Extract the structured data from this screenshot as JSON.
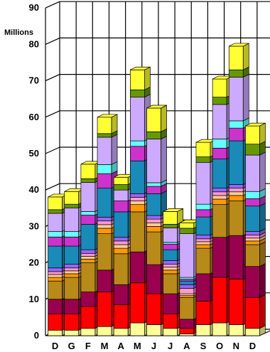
{
  "chart_data": {
    "type": "bar",
    "stacked": true,
    "three_d": true,
    "title": "",
    "ylabel": "Millions",
    "xlabel": "",
    "ylim": [
      0,
      90
    ],
    "yticks": [
      0,
      10,
      20,
      30,
      40,
      50,
      60,
      70,
      80,
      90
    ],
    "grid": true,
    "categories": [
      "D",
      "G",
      "F",
      "M",
      "A",
      "M",
      "J",
      "J",
      "A",
      "S",
      "O",
      "N",
      "D"
    ],
    "series": [
      {
        "color": "#ffff99",
        "values": [
          1.5,
          1.5,
          2.0,
          2.5,
          2.0,
          3.5,
          3.0,
          2.0,
          0.5,
          3.0,
          3.5,
          3.0,
          2.0
        ]
      },
      {
        "color": "#ff0000",
        "values": [
          4.5,
          4.5,
          6.0,
          9.5,
          6.5,
          11.0,
          8.5,
          4.0,
          1.5,
          6.5,
          12.5,
          12.5,
          8.5
        ]
      },
      {
        "color": "#99004d",
        "values": [
          4.0,
          4.0,
          4.0,
          6.0,
          5.5,
          8.5,
          8.0,
          5.5,
          2.5,
          7.5,
          11.0,
          12.0,
          8.5
        ]
      },
      {
        "color": "#b88a1a",
        "values": [
          5.0,
          6.0,
          8.0,
          10.0,
          8.5,
          11.0,
          9.0,
          5.5,
          6.0,
          7.0,
          9.0,
          9.5,
          6.0
        ]
      },
      {
        "color": "#ff9900",
        "values": [
          1.0,
          1.0,
          1.0,
          1.5,
          1.5,
          2.0,
          1.5,
          1.0,
          0.5,
          1.0,
          1.5,
          1.5,
          1.0
        ]
      },
      {
        "color": "#ffcc99",
        "values": [
          0.8,
          0.8,
          0.8,
          1.0,
          1.0,
          1.0,
          1.0,
          0.8,
          0.5,
          0.8,
          1.0,
          1.0,
          0.8
        ]
      },
      {
        "color": "#ff99cc",
        "values": [
          0.8,
          0.8,
          0.8,
          1.0,
          1.0,
          1.0,
          1.0,
          0.8,
          1.5,
          0.8,
          1.0,
          1.0,
          0.8
        ]
      },
      {
        "color": "#9966ff",
        "values": [
          1.0,
          1.0,
          1.0,
          1.0,
          1.0,
          1.0,
          1.0,
          1.0,
          1.0,
          1.0,
          1.0,
          1.0,
          1.0
        ]
      },
      {
        "color": "#1a8ab8",
        "values": [
          6.0,
          5.0,
          7.0,
          8.0,
          7.0,
          9.0,
          6.0,
          3.0,
          1.0,
          5.0,
          8.0,
          12.0,
          7.0
        ]
      },
      {
        "color": "#cc33cc",
        "values": [
          2.5,
          2.5,
          2.5,
          4.0,
          3.0,
          4.0,
          2.0,
          1.5,
          0.5,
          2.0,
          3.0,
          3.5,
          2.0
        ]
      },
      {
        "color": "#66ffff",
        "values": [
          1.5,
          1.5,
          1.0,
          2.5,
          0.0,
          1.5,
          1.0,
          0.5,
          0.5,
          1.5,
          2.5,
          2.0,
          2.0
        ]
      },
      {
        "color": "#ccaaff",
        "values": [
          5.0,
          6.5,
          8.0,
          7.5,
          3.0,
          12.0,
          12.0,
          4.0,
          12.0,
          11.5,
          9.5,
          12.0,
          10.0
        ]
      },
      {
        "color": "#669900",
        "values": [
          1.0,
          1.0,
          1.0,
          1.0,
          1.5,
          2.0,
          2.0,
          1.0,
          1.5,
          1.5,
          2.0,
          2.0,
          3.0
        ]
      },
      {
        "color": "#ffff33",
        "values": [
          3.5,
          3.5,
          4.0,
          4.5,
          2.0,
          5.5,
          6.5,
          3.5,
          1.5,
          4.0,
          5.0,
          6.5,
          5.0
        ]
      }
    ]
  }
}
